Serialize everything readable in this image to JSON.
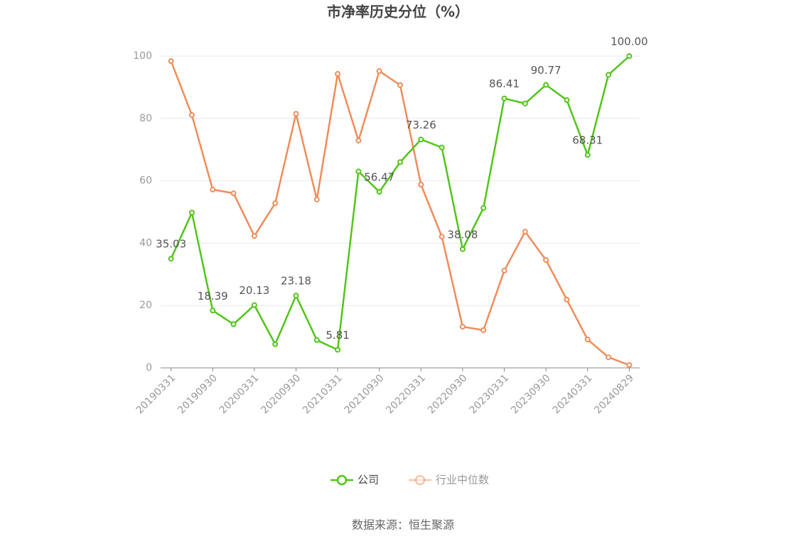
{
  "chart_data": {
    "type": "line",
    "title": "市净率历史分位（%）",
    "categories": [
      "20190331",
      null,
      "20190930",
      null,
      "20200331",
      null,
      "20200930",
      null,
      "20210331",
      null,
      "20210930",
      null,
      "20220331",
      null,
      "20220930",
      null,
      "20230331",
      null,
      "20230930",
      null,
      "20240331",
      null,
      "20240829"
    ],
    "series": [
      {
        "name": "公司",
        "color": "#52c41a",
        "values": [
          35.03,
          49.8,
          18.39,
          14.0,
          20.13,
          7.6,
          23.18,
          8.9,
          5.81,
          63.0,
          56.47,
          66.0,
          73.26,
          70.7,
          38.08,
          51.3,
          86.41,
          84.8,
          90.77,
          85.9,
          68.31,
          94.0,
          100.0
        ],
        "value_labels": [
          "35.03",
          null,
          "18.39",
          null,
          "20.13",
          null,
          "23.18",
          null,
          "5.81",
          null,
          "56.47",
          null,
          "73.26",
          null,
          "38.08",
          null,
          "86.41",
          null,
          "90.77",
          null,
          "68.31",
          null,
          "100.00"
        ]
      },
      {
        "name": "行业中位数",
        "color": "#f08c5a",
        "values": [
          98.4,
          81.1,
          57.2,
          56.0,
          42.3,
          52.8,
          81.5,
          54.0,
          94.3,
          72.9,
          95.2,
          90.7,
          58.8,
          42.1,
          13.2,
          12.1,
          31.2,
          43.7,
          34.6,
          21.9,
          9.1,
          3.4,
          0.9
        ]
      }
    ],
    "ylim": [
      0,
      100
    ],
    "yticks": [
      0,
      20,
      40,
      60,
      80,
      100
    ],
    "grid": true,
    "legend": "bottom",
    "source": "数据来源：恒生聚源"
  }
}
